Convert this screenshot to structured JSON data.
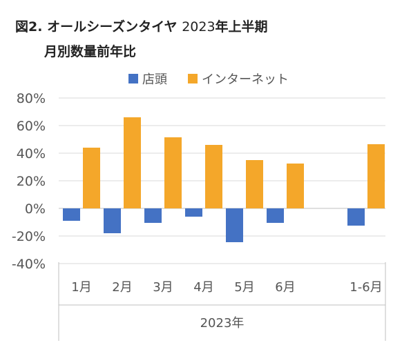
{
  "header": {
    "title_prefix": "図2.",
    "title_main": "オールシーズンタイヤ",
    "title_year": "2023",
    "title_suffix": "年上半期",
    "subtitle": "月別数量前年比"
  },
  "colors": {
    "store": "#4472C4",
    "internet": "#F4A72A",
    "grid": "#d9d9d9",
    "axis": "#bfbfbf"
  },
  "chart_data": {
    "type": "bar",
    "categories": [
      "1月",
      "2月",
      "3月",
      "4月",
      "5月",
      "6月",
      "1-6月"
    ],
    "group_label": "2023年",
    "series": [
      {
        "name": "店頭",
        "values": [
          -9,
          -18,
          -10.5,
          -6,
          -24.5,
          -10.5,
          -12.5
        ]
      },
      {
        "name": "インターネット",
        "values": [
          44,
          66,
          51.5,
          46,
          35,
          32.5,
          46.5
        ]
      }
    ],
    "yticks": [
      "80%",
      "60%",
      "40%",
      "20%",
      "0%",
      "-20%",
      "-40%"
    ],
    "ylim": [
      -40,
      80
    ],
    "legend": "top",
    "grid": true
  }
}
